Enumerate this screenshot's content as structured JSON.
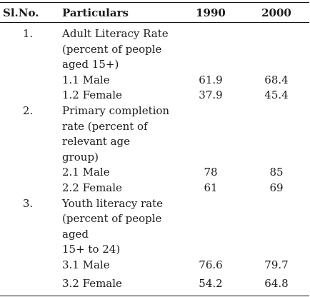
{
  "table": {
    "headers": {
      "sl_no": "Sl.No.",
      "particulars": "Particulars",
      "year1": "1990",
      "year2": "2000"
    },
    "sections": [
      {
        "number": "1.",
        "title_lines": [
          "Adult Literacy Rate",
          "(percent of people",
          "aged 15+)"
        ],
        "rows": [
          {
            "label": "1.1 Male",
            "v1990": "61.9",
            "v2000": "68.4"
          },
          {
            "label": "1.2 Female",
            "v1990": "37.9",
            "v2000": "45.4"
          }
        ]
      },
      {
        "number": "2.",
        "title_lines": [
          "Primary completion",
          "rate (percent of",
          "relevant age",
          "group)"
        ],
        "rows": [
          {
            "label": "2.1 Male",
            "v1990": "78",
            "v2000": "85"
          },
          {
            "label": "2.2 Female",
            "v1990": "61",
            "v2000": "69"
          }
        ]
      },
      {
        "number": "3.",
        "title_lines": [
          "Youth literacy rate",
          "(percent of people",
          "aged",
          "15+ to 24)"
        ],
        "rows": [
          {
            "label": "3.1 Male",
            "v1990": "76.6",
            "v2000": "79.7"
          },
          {
            "label": "3.2 Female",
            "v1990": "54.2",
            "v2000": "64.8"
          }
        ]
      }
    ]
  }
}
